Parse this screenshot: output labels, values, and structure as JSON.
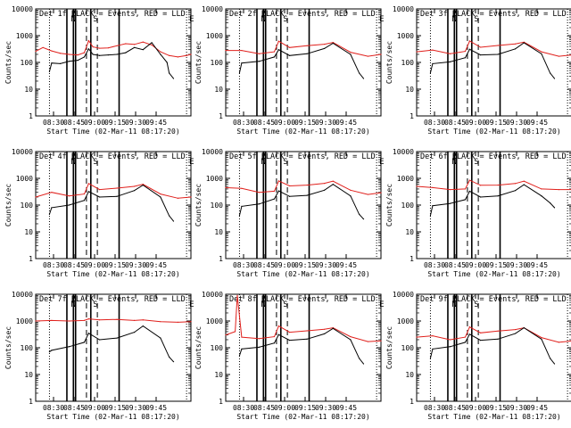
{
  "chart_data": [
    {
      "type": "line",
      "title": "Det 1f BLACK = Events, RED = LLD",
      "xlabel": "Start Time (02-Mar-11 08:17:20)",
      "ylabel": "Counts/sec",
      "yscale": "log",
      "ylim": [
        1,
        10000
      ],
      "xlim": [
        "08:17:20",
        "08:53:00"
      ],
      "xticks": [
        "08:30",
        "08:45",
        "09:00",
        "09:15",
        "09:30",
        "09:45"
      ],
      "yticks": [
        "1",
        "10",
        "100",
        "1000",
        "10000"
      ],
      "annotations": [
        {
          "text": "N"
        },
        {
          "text": "S"
        },
        {
          "text": "E"
        }
      ],
      "vlines": {
        "dotted": [
          "08:20:30",
          "08:52:00"
        ],
        "solid": [
          "08:24:30",
          "08:26:00",
          "08:26:30",
          "08:30:00",
          "08:36:30"
        ],
        "dashed": [
          "08:29:00",
          "08:31:30"
        ]
      },
      "series": [
        {
          "name": "LLD",
          "color": "#e0201c",
          "x": [
            "08:17:20",
            "08:19:00",
            "08:21:00",
            "08:23:00",
            "08:25:00",
            "08:27:00",
            "08:28:30",
            "08:29:30",
            "08:30:30",
            "08:32:00",
            "08:34:00",
            "08:36:00",
            "08:38:00",
            "08:40:00",
            "08:42:00",
            "08:44:00",
            "08:46:00",
            "08:48:00",
            "08:50:00",
            "08:52:00",
            "08:53:00"
          ],
          "values": [
            260,
            360,
            270,
            220,
            200,
            190,
            230,
            650,
            380,
            340,
            350,
            420,
            500,
            470,
            580,
            450,
            250,
            180,
            160,
            180,
            200
          ]
        },
        {
          "name": "Events",
          "color": "#000000",
          "x": [
            "08:20:30",
            "08:21:00",
            "08:23:00",
            "08:25:00",
            "08:27:00",
            "08:28:30",
            "08:29:30",
            "08:30:30",
            "08:32:00",
            "08:34:00",
            "08:36:00",
            "08:38:00",
            "08:40:00",
            "08:42:00",
            "08:44:00",
            "08:46:00",
            "08:47:30",
            "08:48:00",
            "08:49:00"
          ],
          "values": [
            45,
            95,
            90,
            110,
            120,
            160,
            320,
            200,
            180,
            190,
            200,
            230,
            360,
            300,
            550,
            200,
            100,
            40,
            25
          ]
        }
      ]
    },
    {
      "type": "line",
      "title": "Det 2f BLACK = Events, RED = LLD",
      "xlabel": "Start Time (02-Mar-11 08:17:20)",
      "ylabel": "Counts/sec",
      "yscale": "log",
      "ylim": [
        1,
        10000
      ],
      "xticks": [
        "08:30",
        "08:45",
        "09:00",
        "09:15",
        "09:30",
        "09:45"
      ],
      "yticks": [
        "1",
        "10",
        "100",
        "1000",
        "10000"
      ],
      "annotations": [
        {
          "text": "N"
        },
        {
          "text": "S"
        },
        {
          "text": "E"
        }
      ],
      "series": [
        {
          "name": "LLD",
          "color": "#e0201c",
          "x": [
            "08:17:20",
            "08:21:00",
            "08:25:00",
            "08:28:30",
            "08:29:30",
            "08:32:00",
            "08:36:00",
            "08:40:00",
            "08:42:00",
            "08:46:00",
            "08:50:00",
            "08:53:00"
          ],
          "values": [
            280,
            280,
            210,
            250,
            620,
            360,
            420,
            480,
            560,
            240,
            170,
            200
          ]
        },
        {
          "name": "Events",
          "color": "#000000",
          "x": [
            "08:20:30",
            "08:21:00",
            "08:25:00",
            "08:28:30",
            "08:29:30",
            "08:32:00",
            "08:36:00",
            "08:40:00",
            "08:42:00",
            "08:46:00",
            "08:48:00",
            "08:49:00"
          ],
          "values": [
            40,
            95,
            110,
            160,
            300,
            180,
            210,
            330,
            520,
            200,
            40,
            25
          ]
        }
      ]
    },
    {
      "type": "line",
      "title": "Det 3f BLACK = Events, RED = LLD",
      "xlabel": "Start Time (02-Mar-11 08:17:20)",
      "ylabel": "Counts/sec",
      "yscale": "log",
      "ylim": [
        1,
        10000
      ],
      "xticks": [
        "08:30",
        "08:45",
        "09:00",
        "09:15",
        "09:30",
        "09:45"
      ],
      "yticks": [
        "1",
        "10",
        "100",
        "1000",
        "10000"
      ],
      "annotations": [
        {
          "text": "N"
        },
        {
          "text": "S"
        },
        {
          "text": "E"
        }
      ],
      "series": [
        {
          "name": "LLD",
          "color": "#e0201c",
          "x": [
            "08:17:20",
            "08:21:00",
            "08:25:00",
            "08:28:30",
            "08:29:30",
            "08:32:00",
            "08:36:00",
            "08:40:00",
            "08:42:00",
            "08:46:00",
            "08:50:00",
            "08:53:00"
          ],
          "values": [
            250,
            290,
            210,
            260,
            630,
            370,
            430,
            490,
            570,
            250,
            170,
            190
          ]
        },
        {
          "name": "Events",
          "color": "#000000",
          "x": [
            "08:20:30",
            "08:21:00",
            "08:25:00",
            "08:28:30",
            "08:29:30",
            "08:32:00",
            "08:36:00",
            "08:40:00",
            "08:42:00",
            "08:46:00",
            "08:48:00",
            "08:49:00"
          ],
          "values": [
            40,
            90,
            105,
            150,
            310,
            190,
            200,
            320,
            540,
            210,
            40,
            25
          ]
        }
      ]
    },
    {
      "type": "line",
      "title": "Det 4f BLACK = Events, RED = LLD",
      "xlabel": "Start Time (02-Mar-11 08:17:20)",
      "ylabel": "Counts/sec",
      "yscale": "log",
      "ylim": [
        1,
        10000
      ],
      "xticks": [
        "08:30",
        "08:45",
        "09:00",
        "09:15",
        "09:30",
        "09:45"
      ],
      "yticks": [
        "1",
        "10",
        "100",
        "1000",
        "10000"
      ],
      "annotations": [
        {
          "text": "N"
        },
        {
          "text": "S"
        },
        {
          "text": "E"
        }
      ],
      "series": [
        {
          "name": "LLD",
          "color": "#e0201c",
          "x": [
            "08:17:20",
            "08:21:00",
            "08:25:00",
            "08:28:30",
            "08:29:30",
            "08:32:00",
            "08:36:00",
            "08:40:00",
            "08:42:00",
            "08:46:00",
            "08:50:00",
            "08:53:00"
          ],
          "values": [
            200,
            300,
            220,
            260,
            640,
            380,
            430,
            500,
            600,
            260,
            180,
            200
          ]
        },
        {
          "name": "Events",
          "color": "#000000",
          "x": [
            "08:20:30",
            "08:21:00",
            "08:25:00",
            "08:28:30",
            "08:29:30",
            "08:32:00",
            "08:36:00",
            "08:40:00",
            "08:42:00",
            "08:46:00",
            "08:48:00",
            "08:49:00"
          ],
          "values": [
            45,
            80,
            100,
            150,
            320,
            200,
            210,
            350,
            560,
            200,
            40,
            25
          ]
        }
      ]
    },
    {
      "type": "line",
      "title": "Det 5f BLACK = Events, RED = LLD",
      "xlabel": "Start Time (02-Mar-11 08:17:20)",
      "ylabel": "Counts/sec",
      "yscale": "log",
      "ylim": [
        1,
        10000
      ],
      "xticks": [
        "08:30",
        "08:45",
        "09:00",
        "09:15",
        "09:30",
        "09:45"
      ],
      "yticks": [
        "1",
        "10",
        "100",
        "1000",
        "10000"
      ],
      "annotations": [
        {
          "text": "N"
        },
        {
          "text": "S"
        },
        {
          "text": "E"
        }
      ],
      "series": [
        {
          "name": "LLD",
          "color": "#e0201c",
          "x": [
            "08:17:20",
            "08:21:00",
            "08:25:00",
            "08:28:30",
            "08:29:30",
            "08:32:00",
            "08:36:00",
            "08:40:00",
            "08:42:00",
            "08:46:00",
            "08:50:00",
            "08:53:00"
          ],
          "values": [
            450,
            420,
            300,
            330,
            800,
            520,
            560,
            650,
            780,
            360,
            250,
            290
          ]
        },
        {
          "name": "Events",
          "color": "#000000",
          "x": [
            "08:20:30",
            "08:21:00",
            "08:25:00",
            "08:28:30",
            "08:29:30",
            "08:32:00",
            "08:36:00",
            "08:40:00",
            "08:42:00",
            "08:46:00",
            "08:48:00",
            "08:49:00"
          ],
          "values": [
            40,
            90,
            110,
            170,
            340,
            210,
            230,
            360,
            600,
            220,
            45,
            30
          ]
        }
      ]
    },
    {
      "type": "line",
      "title": "Det 6f BLACK = Events, RED = LLD",
      "xlabel": "Start Time (02-Mar-11 08:17:20)",
      "ylabel": "Counts/sec",
      "yscale": "log",
      "ylim": [
        1,
        10000
      ],
      "xticks": [
        "08:30",
        "08:45",
        "09:00",
        "09:15",
        "09:30",
        "09:45"
      ],
      "yticks": [
        "1",
        "10",
        "100",
        "1000",
        "10000"
      ],
      "annotations": [
        {
          "text": "N"
        },
        {
          "text": "S"
        },
        {
          "text": "E"
        }
      ],
      "series": [
        {
          "name": "LLD",
          "color": "#e0201c",
          "x": [
            "08:17:20",
            "08:21:00",
            "08:25:00",
            "08:28:30",
            "08:29:30",
            "08:32:00",
            "08:36:00",
            "08:40:00",
            "08:42:00",
            "08:46:00",
            "08:50:00",
            "08:53:00"
          ],
          "values": [
            500,
            450,
            380,
            400,
            850,
            550,
            560,
            640,
            780,
            400,
            380,
            380
          ]
        },
        {
          "name": "Events",
          "color": "#000000",
          "x": [
            "08:20:30",
            "08:21:00",
            "08:25:00",
            "08:28:30",
            "08:29:30",
            "08:32:00",
            "08:36:00",
            "08:40:00",
            "08:42:00",
            "08:46:00",
            "08:48:00",
            "08:49:00"
          ],
          "values": [
            40,
            95,
            115,
            160,
            330,
            200,
            220,
            350,
            580,
            220,
            120,
            80
          ]
        }
      ]
    },
    {
      "type": "line",
      "title": "Det 7f BLACK = Events, RED = LLD",
      "xlabel": "Start Time (02-Mar-11 08:17:20)",
      "ylabel": "Counts/sec",
      "yscale": "log",
      "ylim": [
        1,
        10000
      ],
      "xticks": [
        "08:30",
        "08:45",
        "09:00",
        "09:15",
        "09:30",
        "09:45"
      ],
      "yticks": [
        "1",
        "10",
        "100",
        "1000",
        "10000"
      ],
      "annotations": [
        {
          "text": "N"
        },
        {
          "text": "S"
        },
        {
          "text": "E"
        }
      ],
      "series": [
        {
          "name": "LLD",
          "color": "#e0201c",
          "x": [
            "08:17:20",
            "08:21:00",
            "08:25:00",
            "08:28:30",
            "08:29:30",
            "08:32:00",
            "08:36:00",
            "08:40:00",
            "08:42:00",
            "08:46:00",
            "08:50:00",
            "08:53:00"
          ],
          "values": [
            1000,
            1050,
            1000,
            1050,
            1200,
            1100,
            1150,
            1050,
            1100,
            950,
            900,
            950
          ]
        },
        {
          "name": "Events",
          "color": "#000000",
          "x": [
            "08:20:30",
            "08:21:00",
            "08:25:00",
            "08:28:30",
            "08:29:30",
            "08:32:00",
            "08:36:00",
            "08:40:00",
            "08:42:00",
            "08:46:00",
            "08:48:00",
            "08:49:00"
          ],
          "values": [
            70,
            80,
            110,
            160,
            350,
            200,
            230,
            380,
            650,
            230,
            45,
            30
          ]
        }
      ]
    },
    {
      "type": "line",
      "title": "Det 8f BLACK = Events, RED = LLD",
      "xlabel": "Start Time (02-Mar-11 08:17:20)",
      "ylabel": "Counts/sec",
      "yscale": "log",
      "ylim": [
        1,
        10000
      ],
      "xticks": [
        "08:30",
        "08:45",
        "09:00",
        "09:15",
        "09:30",
        "09:45"
      ],
      "yticks": [
        "1",
        "10",
        "100",
        "1000",
        "10000"
      ],
      "annotations": [
        {
          "text": "N"
        },
        {
          "text": "S"
        },
        {
          "text": "E"
        }
      ],
      "series": [
        {
          "name": "LLD",
          "color": "#e0201c",
          "x": [
            "08:17:20",
            "08:19:30",
            "08:20:00",
            "08:21:00",
            "08:25:00",
            "08:28:30",
            "08:29:30",
            "08:32:00",
            "08:36:00",
            "08:40:00",
            "08:42:00",
            "08:46:00",
            "08:50:00",
            "08:53:00"
          ],
          "values": [
            300,
            400,
            9000,
            250,
            220,
            260,
            650,
            380,
            430,
            490,
            560,
            260,
            170,
            180
          ]
        },
        {
          "name": "Events",
          "color": "#000000",
          "x": [
            "08:20:30",
            "08:21:00",
            "08:25:00",
            "08:28:30",
            "08:29:30",
            "08:32:00",
            "08:36:00",
            "08:40:00",
            "08:42:00",
            "08:46:00",
            "08:48:00",
            "08:49:00"
          ],
          "values": [
            50,
            90,
            105,
            150,
            310,
            190,
            210,
            330,
            530,
            200,
            40,
            25
          ]
        }
      ]
    },
    {
      "type": "line",
      "title": "Det 9f BLACK = Events, RED = LLD",
      "xlabel": "Start Time (02-Mar-11 08:17:20)",
      "ylabel": "Counts/sec",
      "yscale": "log",
      "ylim": [
        1,
        10000
      ],
      "xticks": [
        "08:30",
        "08:45",
        "09:00",
        "09:15",
        "09:30",
        "09:45"
      ],
      "yticks": [
        "1",
        "10",
        "100",
        "1000",
        "10000"
      ],
      "annotations": [
        {
          "text": "N"
        },
        {
          "text": "S"
        },
        {
          "text": "E"
        }
      ],
      "series": [
        {
          "name": "LLD",
          "color": "#e0201c",
          "x": [
            "08:17:20",
            "08:21:00",
            "08:25:00",
            "08:28:30",
            "08:29:30",
            "08:32:00",
            "08:36:00",
            "08:40:00",
            "08:42:00",
            "08:46:00",
            "08:50:00",
            "08:53:00"
          ],
          "values": [
            250,
            280,
            200,
            250,
            600,
            360,
            420,
            480,
            560,
            240,
            160,
            180
          ]
        },
        {
          "name": "Events",
          "color": "#000000",
          "x": [
            "08:20:30",
            "08:21:00",
            "08:25:00",
            "08:28:30",
            "08:29:30",
            "08:32:00",
            "08:36:00",
            "08:40:00",
            "08:42:00",
            "08:46:00",
            "08:48:00",
            "08:49:00"
          ],
          "values": [
            40,
            90,
            110,
            160,
            320,
            190,
            210,
            340,
            560,
            210,
            40,
            25
          ]
        }
      ]
    }
  ]
}
